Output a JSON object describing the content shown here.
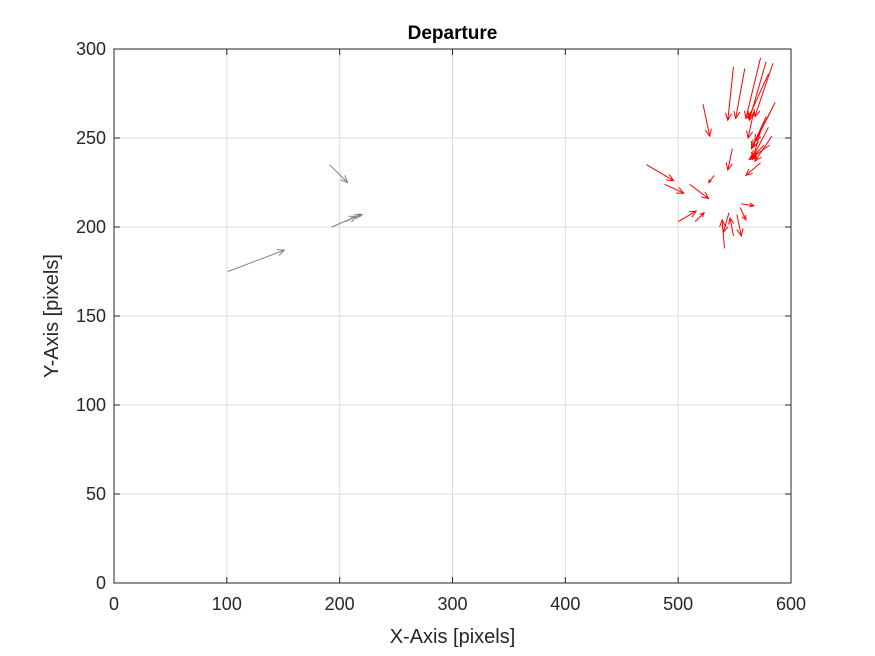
{
  "chart_data": {
    "type": "quiver",
    "title": "Departure",
    "xlabel": "X-Axis [pixels]",
    "ylabel": "Y-Axis [pixels]",
    "xlim": [
      0,
      600
    ],
    "ylim": [
      0,
      300
    ],
    "xticks": [
      0,
      100,
      200,
      300,
      400,
      500,
      600
    ],
    "yticks": [
      0,
      50,
      100,
      150,
      200,
      250,
      300
    ],
    "xtick_labels": [
      "0",
      "100",
      "200",
      "300",
      "400",
      "500",
      "600"
    ],
    "ytick_labels": [
      "0",
      "50",
      "100",
      "150",
      "200",
      "250",
      "300"
    ],
    "grid": true,
    "series": [
      {
        "name": "gray",
        "color": "#808080",
        "vectors": [
          {
            "x": 101,
            "y": 175,
            "u": 50,
            "v": 12
          },
          {
            "x": 191,
            "y": 235,
            "u": 16,
            "v": -10
          },
          {
            "x": 193,
            "y": 200,
            "u": 22,
            "v": 6
          },
          {
            "x": 205,
            "y": 203,
            "u": 13,
            "v": 4
          },
          {
            "x": 210,
            "y": 205,
            "u": 10,
            "v": 2
          }
        ]
      },
      {
        "name": "red",
        "color": "#ff0000",
        "vectors": [
          {
            "x": 549,
            "y": 290,
            "u": -5,
            "v": -30
          },
          {
            "x": 559,
            "y": 289,
            "u": -8,
            "v": -28
          },
          {
            "x": 573,
            "y": 295,
            "u": -13,
            "v": -34
          },
          {
            "x": 578,
            "y": 293,
            "u": -15,
            "v": -33
          },
          {
            "x": 584,
            "y": 292,
            "u": -16,
            "v": -30
          },
          {
            "x": 580,
            "y": 286,
            "u": -18,
            "v": -25
          },
          {
            "x": 586,
            "y": 270,
            "u": -18,
            "v": -22
          },
          {
            "x": 582,
            "y": 265,
            "u": -16,
            "v": -20
          },
          {
            "x": 578,
            "y": 262,
            "u": -13,
            "v": -18
          },
          {
            "x": 580,
            "y": 256,
            "u": -14,
            "v": -17
          },
          {
            "x": 583,
            "y": 251,
            "u": -15,
            "v": -14
          },
          {
            "x": 574,
            "y": 256,
            "u": -8,
            "v": -18
          },
          {
            "x": 567,
            "y": 265,
            "u": -5,
            "v": -15
          },
          {
            "x": 522,
            "y": 269,
            "u": 6,
            "v": -18
          },
          {
            "x": 581,
            "y": 246,
            "u": -18,
            "v": -8
          },
          {
            "x": 576,
            "y": 246,
            "u": -12,
            "v": -8
          },
          {
            "x": 573,
            "y": 236,
            "u": -13,
            "v": -7
          },
          {
            "x": 548,
            "y": 244,
            "u": -4,
            "v": -12
          },
          {
            "x": 472,
            "y": 235,
            "u": 24,
            "v": -9
          },
          {
            "x": 488,
            "y": 224,
            "u": 17,
            "v": -5
          },
          {
            "x": 510,
            "y": 224,
            "u": 17,
            "v": -8
          },
          {
            "x": 532,
            "y": 229,
            "u": -5,
            "v": -4
          },
          {
            "x": 500,
            "y": 203,
            "u": 16,
            "v": 6
          },
          {
            "x": 515,
            "y": 203,
            "u": 8,
            "v": 5
          },
          {
            "x": 545,
            "y": 208,
            "u": -5,
            "v": -11
          },
          {
            "x": 552,
            "y": 207,
            "u": 4,
            "v": -12
          },
          {
            "x": 555,
            "y": 211,
            "u": 5,
            "v": -7
          },
          {
            "x": 556,
            "y": 213,
            "u": 11,
            "v": -1
          },
          {
            "x": 541,
            "y": 188,
            "u": -2,
            "v": 16
          },
          {
            "x": 549,
            "y": 195,
            "u": -3,
            "v": 10
          }
        ]
      }
    ]
  }
}
